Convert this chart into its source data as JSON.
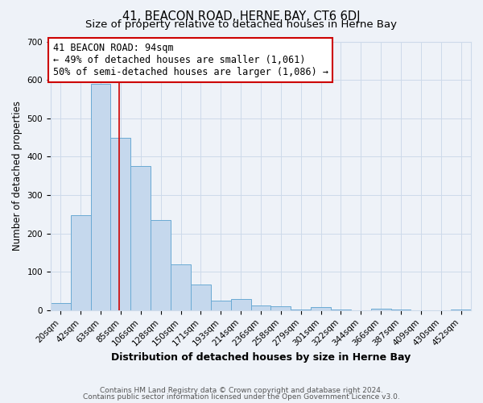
{
  "title": "41, BEACON ROAD, HERNE BAY, CT6 6DJ",
  "subtitle": "Size of property relative to detached houses in Herne Bay",
  "xlabel": "Distribution of detached houses by size in Herne Bay",
  "ylabel": "Number of detached properties",
  "footer_lines": [
    "Contains HM Land Registry data © Crown copyright and database right 2024.",
    "Contains public sector information licensed under the Open Government Licence v3.0."
  ],
  "bin_labels": [
    "20sqm",
    "42sqm",
    "63sqm",
    "85sqm",
    "106sqm",
    "128sqm",
    "150sqm",
    "171sqm",
    "193sqm",
    "214sqm",
    "236sqm",
    "258sqm",
    "279sqm",
    "301sqm",
    "322sqm",
    "344sqm",
    "366sqm",
    "387sqm",
    "409sqm",
    "430sqm",
    "452sqm"
  ],
  "bin_values": [
    18,
    248,
    590,
    450,
    375,
    235,
    120,
    67,
    25,
    30,
    13,
    10,
    2,
    8,
    2,
    0,
    3,
    2,
    0,
    0,
    1
  ],
  "bar_color": "#c5d8ed",
  "bar_edge_color": "#6aaad4",
  "bar_edge_width": 0.7,
  "grid_color": "#cddaea",
  "bg_color": "#eef2f8",
  "vline_color": "#cc0000",
  "annotation_text": "41 BEACON ROAD: 94sqm\n← 49% of detached houses are smaller (1,061)\n50% of semi-detached houses are larger (1,086) →",
  "annotation_box_color": "#ffffff",
  "annotation_border_color": "#cc0000",
  "ylim": [
    0,
    700
  ],
  "yticks": [
    0,
    100,
    200,
    300,
    400,
    500,
    600,
    700
  ],
  "title_fontsize": 10.5,
  "subtitle_fontsize": 9.5,
  "xlabel_fontsize": 9,
  "ylabel_fontsize": 8.5,
  "tick_fontsize": 7.5,
  "annotation_fontsize": 8.5,
  "footer_fontsize": 6.5
}
